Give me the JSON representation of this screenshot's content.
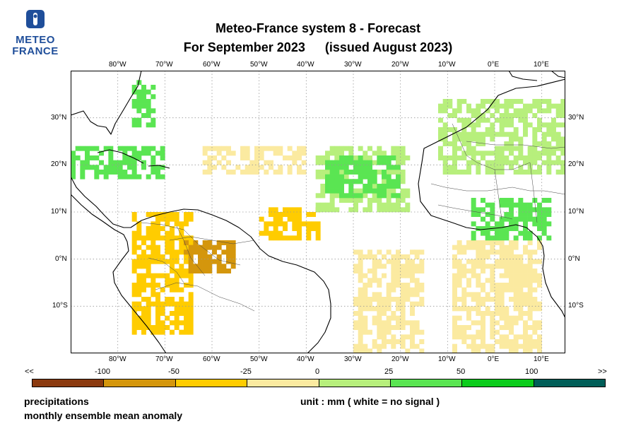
{
  "logo": {
    "line1": "METEO",
    "line2": "FRANCE"
  },
  "title": {
    "line1": "Meteo-France system 8  -  Forecast",
    "line2_left": "For September 2023",
    "line2_right": "(issued August 2023)"
  },
  "axes": {
    "lon_labels": [
      "80°W",
      "70°W",
      "60°W",
      "50°W",
      "40°W",
      "30°W",
      "20°W",
      "10°W",
      "0°E",
      "10°E"
    ],
    "lat_labels": [
      "30°N",
      "20°N",
      "10°N",
      "0°N",
      "10°S"
    ]
  },
  "colorbar": {
    "labels": [
      "<<",
      "-100",
      "-50",
      "-25",
      "0",
      "25",
      "50",
      "100",
      ">>"
    ],
    "colors": [
      "#8b3a0f",
      "#d4960c",
      "#ffcc00",
      "#fbeaa0",
      "#b7ef7c",
      "#5ae552",
      "#0ccc1c",
      "#0a8a38",
      "#005e58"
    ]
  },
  "footer": {
    "variable": "precipitations",
    "description": "monthly ensemble mean anomaly",
    "unit": "unit : mm  ( white = no signal )"
  },
  "chart_data": {
    "type": "heatmap",
    "lon_range": [
      -90,
      15
    ],
    "lat_range": [
      -20,
      40
    ],
    "regions": [
      {
        "lon": [
          -77,
          -64
        ],
        "lat": [
          -16,
          10
        ],
        "cls": "dry",
        "level": 2
      },
      {
        "lon": [
          -66,
          -55
        ],
        "lat": [
          -3,
          4
        ],
        "cls": "dry",
        "level": 3
      },
      {
        "lon": [
          -50,
          -37
        ],
        "lat": [
          4,
          11
        ],
        "cls": "dry",
        "level": 2
      },
      {
        "lon": [
          -30,
          -15
        ],
        "lat": [
          -20,
          2
        ],
        "cls": "dry",
        "level": 1
      },
      {
        "lon": [
          -62,
          -40
        ],
        "lat": [
          18,
          24
        ],
        "cls": "dry",
        "level": 1
      },
      {
        "lon": [
          -9,
          10
        ],
        "lat": [
          -20,
          4
        ],
        "cls": "dry",
        "level": 1
      },
      {
        "lon": [
          -38,
          -18
        ],
        "lat": [
          10,
          24
        ],
        "cls": "wet",
        "level": 1
      },
      {
        "lon": [
          -36,
          -20
        ],
        "lat": [
          13,
          22
        ],
        "cls": "wet",
        "level": 2
      },
      {
        "lon": [
          -12,
          15
        ],
        "lat": [
          18,
          34
        ],
        "cls": "wet",
        "level": 1
      },
      {
        "lon": [
          -5,
          12
        ],
        "lat": [
          4,
          13
        ],
        "cls": "wet",
        "level": 2
      },
      {
        "lon": [
          -90,
          -70
        ],
        "lat": [
          17,
          24
        ],
        "cls": "wet",
        "level": 2
      },
      {
        "lon": [
          -77,
          -72
        ],
        "lat": [
          28,
          38
        ],
        "cls": "wet",
        "level": 2
      }
    ]
  }
}
